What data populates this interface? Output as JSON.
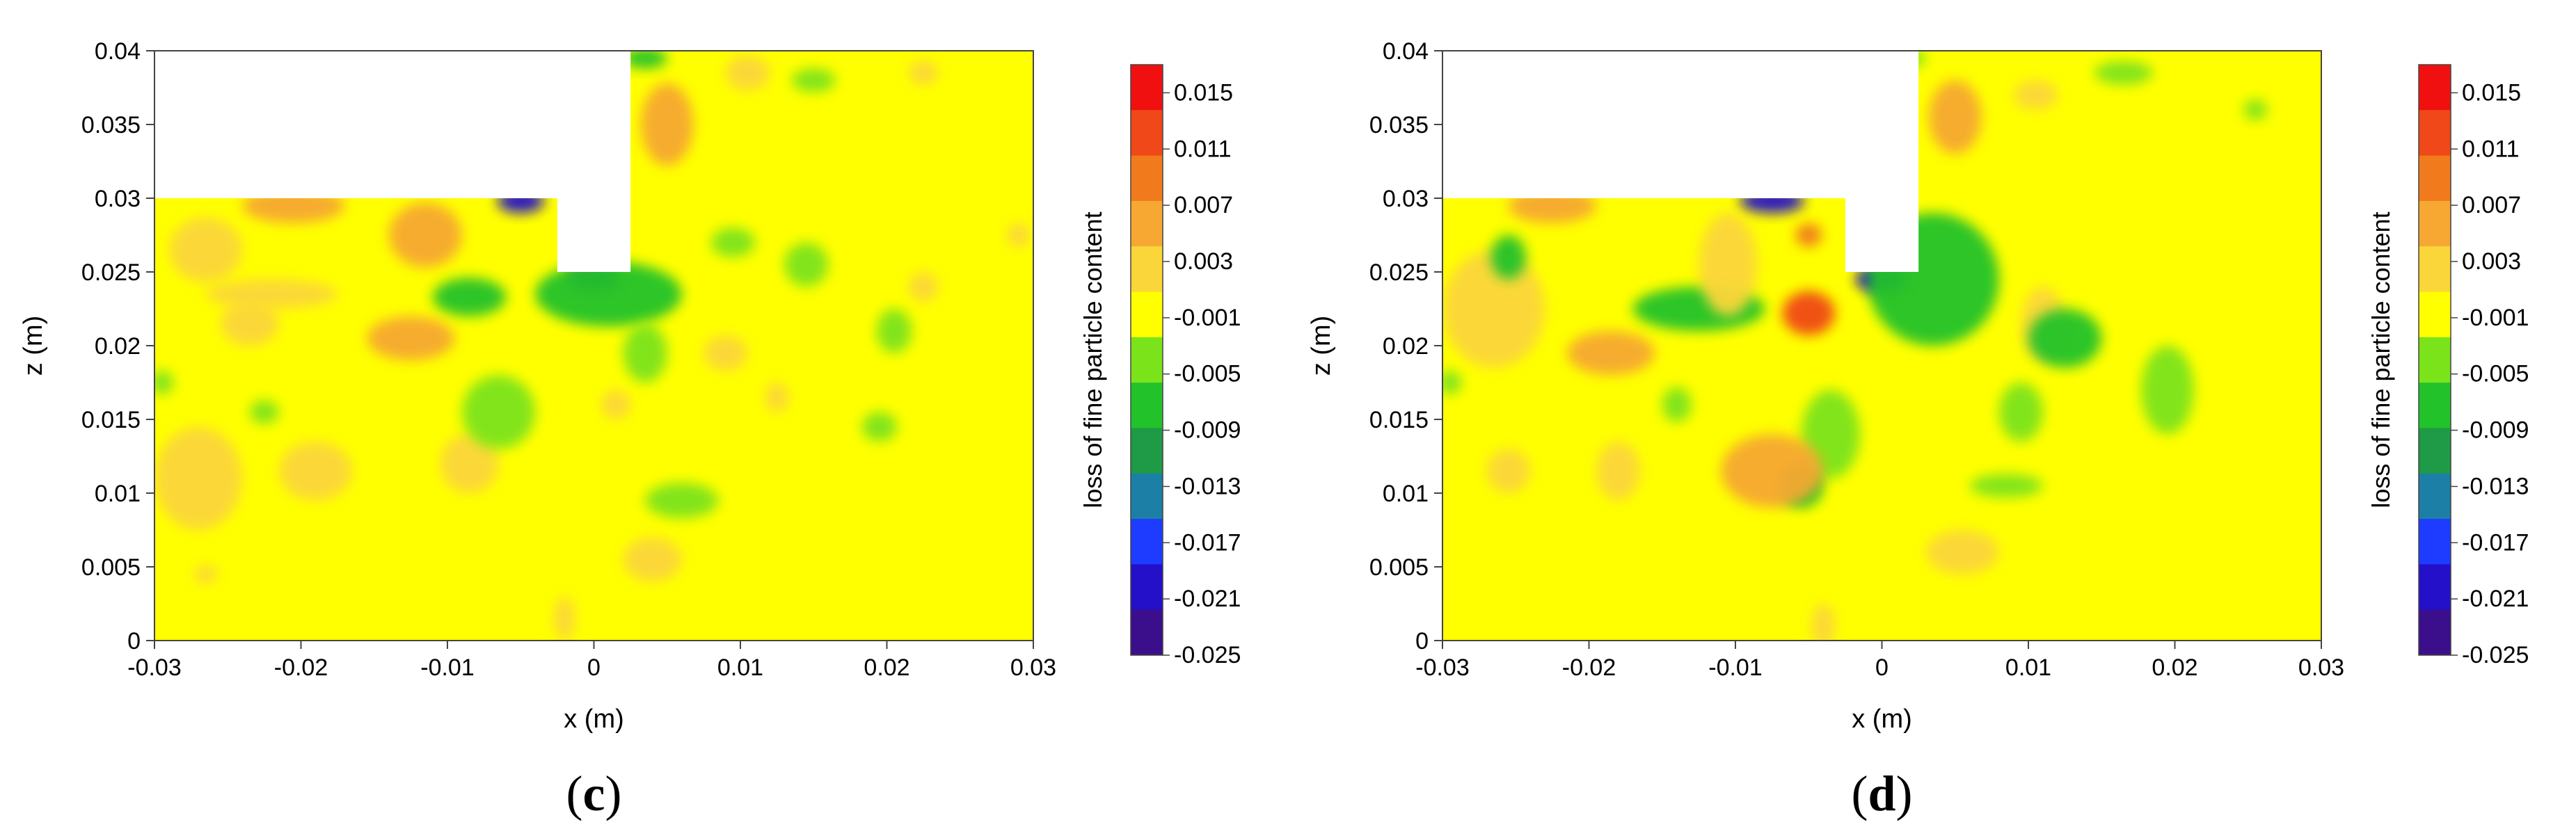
{
  "colors": {
    "background": "#ffff00",
    "masked": "#ffffff",
    "scale": [
      "#3b0f8c",
      "#2410c8",
      "#1e3cff",
      "#1b7fa6",
      "#1f9a47",
      "#22c22a",
      "#7be31a",
      "#ffff00",
      "#fbd63a",
      "#f6a832",
      "#f07a1c",
      "#f04818",
      "#f01010"
    ]
  },
  "chart_data": [
    {
      "type": "heatmap",
      "caption": "c",
      "xlabel": "x (m)",
      "ylabel": "z (m)",
      "xlim": [
        -0.03,
        0.03
      ],
      "ylim": [
        0,
        0.04
      ],
      "xticks": [
        "-0.03",
        "-0.02",
        "-0.01",
        "0",
        "0.01",
        "0.02",
        "0.03"
      ],
      "yticks": [
        "0",
        "0.005",
        "0.01",
        "0.015",
        "0.02",
        "0.025",
        "0.03",
        "0.035",
        "0.04"
      ],
      "colorbar": {
        "label": "loss of fine particle content",
        "ticks": [
          "0.015",
          "0.011",
          "0.007",
          "0.003",
          "-0.001",
          "-0.005",
          "-0.009",
          "-0.013",
          "-0.017",
          "-0.021",
          "-0.025"
        ],
        "range": [
          -0.025,
          0.017
        ]
      },
      "blobs": [
        {
          "x": -0.0205,
          "z": 0.0295,
          "rx": 0.0035,
          "rz": 0.0012,
          "v": 0.008
        },
        {
          "x": -0.0115,
          "z": 0.0275,
          "rx": 0.0025,
          "rz": 0.0022,
          "v": 0.007
        },
        {
          "x": -0.005,
          "z": 0.0298,
          "rx": 0.0016,
          "rz": 0.0008,
          "v": -0.021
        },
        {
          "x": 0.005,
          "z": 0.035,
          "rx": 0.0018,
          "rz": 0.0028,
          "v": 0.008
        },
        {
          "x": 0.0035,
          "z": 0.0395,
          "rx": 0.0015,
          "rz": 0.0007,
          "v": -0.006
        },
        {
          "x": 0.0,
          "z": 0.0245,
          "rx": 0.0018,
          "rz": 0.0007,
          "v": -0.02
        },
        {
          "x": 0.001,
          "z": 0.0235,
          "rx": 0.005,
          "rz": 0.0022,
          "v": -0.006
        },
        {
          "x": -0.0085,
          "z": 0.0233,
          "rx": 0.0025,
          "rz": 0.0013,
          "v": -0.006
        },
        {
          "x": -0.022,
          "z": 0.0235,
          "rx": 0.0045,
          "rz": 0.001,
          "v": 0.004
        },
        {
          "x": -0.0265,
          "z": 0.0265,
          "rx": 0.0025,
          "rz": 0.0022,
          "v": 0.003
        },
        {
          "x": -0.0235,
          "z": 0.0215,
          "rx": 0.002,
          "rz": 0.0015,
          "v": 0.004
        },
        {
          "x": -0.0125,
          "z": 0.0205,
          "rx": 0.003,
          "rz": 0.0015,
          "v": 0.005
        },
        {
          "x": -0.019,
          "z": 0.0115,
          "rx": 0.0025,
          "rz": 0.002,
          "v": 0.004
        },
        {
          "x": -0.0085,
          "z": 0.012,
          "rx": 0.002,
          "rz": 0.002,
          "v": 0.004
        },
        {
          "x": -0.027,
          "z": 0.011,
          "rx": 0.003,
          "rz": 0.0035,
          "v": 0.003
        },
        {
          "x": -0.0065,
          "z": 0.0155,
          "rx": 0.0025,
          "rz": 0.0025,
          "v": -0.004
        },
        {
          "x": -0.0225,
          "z": 0.0155,
          "rx": 0.001,
          "rz": 0.0008,
          "v": -0.004
        },
        {
          "x": -0.0295,
          "z": 0.0175,
          "rx": 0.0008,
          "rz": 0.0008,
          "v": -0.003
        },
        {
          "x": 0.006,
          "z": 0.0095,
          "rx": 0.0025,
          "rz": 0.0012,
          "v": -0.005
        },
        {
          "x": 0.0035,
          "z": 0.0195,
          "rx": 0.0015,
          "rz": 0.002,
          "v": -0.004
        },
        {
          "x": 0.0195,
          "z": 0.0145,
          "rx": 0.0012,
          "rz": 0.001,
          "v": -0.004
        },
        {
          "x": 0.0205,
          "z": 0.021,
          "rx": 0.0012,
          "rz": 0.0015,
          "v": -0.004
        },
        {
          "x": 0.0145,
          "z": 0.0255,
          "rx": 0.0015,
          "rz": 0.0015,
          "v": -0.004
        },
        {
          "x": 0.0095,
          "z": 0.027,
          "rx": 0.0015,
          "rz": 0.001,
          "v": -0.004
        },
        {
          "x": 0.015,
          "z": 0.038,
          "rx": 0.0015,
          "rz": 0.0008,
          "v": -0.003
        },
        {
          "x": 0.0225,
          "z": 0.0385,
          "rx": 0.001,
          "rz": 0.0008,
          "v": 0.003
        },
        {
          "x": 0.0105,
          "z": 0.0385,
          "rx": 0.0015,
          "rz": 0.0012,
          "v": 0.003
        },
        {
          "x": 0.029,
          "z": 0.0275,
          "rx": 0.0008,
          "rz": 0.0008,
          "v": 0.003
        },
        {
          "x": 0.004,
          "z": 0.0055,
          "rx": 0.002,
          "rz": 0.0015,
          "v": 0.004
        },
        {
          "x": -0.002,
          "z": 0.0015,
          "rx": 0.0007,
          "rz": 0.0015,
          "v": 0.004
        },
        {
          "x": 0.009,
          "z": 0.0195,
          "rx": 0.0015,
          "rz": 0.0012,
          "v": 0.003
        },
        {
          "x": 0.0015,
          "z": 0.016,
          "rx": 0.001,
          "rz": 0.001,
          "v": 0.003
        },
        {
          "x": 0.0125,
          "z": 0.0165,
          "rx": 0.0008,
          "rz": 0.001,
          "v": 0.003
        },
        {
          "x": 0.0225,
          "z": 0.024,
          "rx": 0.001,
          "rz": 0.001,
          "v": 0.003
        },
        {
          "x": -0.0265,
          "z": 0.0045,
          "rx": 0.0008,
          "rz": 0.0006,
          "v": 0.003
        }
      ]
    },
    {
      "type": "heatmap",
      "caption": "d",
      "xlabel": "x (m)",
      "ylabel": "z (m)",
      "xlim": [
        -0.03,
        0.03
      ],
      "ylim": [
        0,
        0.04
      ],
      "xticks": [
        "-0.03",
        "-0.02",
        "-0.01",
        "0",
        "0.01",
        "0.02",
        "0.03"
      ],
      "yticks": [
        "0",
        "0.005",
        "0.01",
        "0.015",
        "0.02",
        "0.025",
        "0.03",
        "0.035",
        "0.04"
      ],
      "colorbar": {
        "label": "loss of fine particle content",
        "ticks": [
          "0.015",
          "0.011",
          "0.007",
          "0.003",
          "-0.001",
          "-0.005",
          "-0.009",
          "-0.013",
          "-0.017",
          "-0.021",
          "-0.025"
        ],
        "range": [
          -0.025,
          0.017
        ]
      },
      "blobs": [
        {
          "x": -0.0225,
          "z": 0.0295,
          "rx": 0.003,
          "rz": 0.0012,
          "v": 0.008
        },
        {
          "x": -0.0075,
          "z": 0.0298,
          "rx": 0.0022,
          "rz": 0.0008,
          "v": -0.02
        },
        {
          "x": 0.0,
          "z": 0.0245,
          "rx": 0.0018,
          "rz": 0.0009,
          "v": -0.022
        },
        {
          "x": 0.0035,
          "z": 0.0245,
          "rx": 0.0045,
          "rz": 0.0045,
          "v": -0.007
        },
        {
          "x": -0.005,
          "z": 0.0222,
          "rx": 0.0018,
          "rz": 0.0015,
          "v": 0.012
        },
        {
          "x": -0.005,
          "z": 0.0275,
          "rx": 0.0009,
          "rz": 0.0008,
          "v": 0.011
        },
        {
          "x": -0.0125,
          "z": 0.0225,
          "rx": 0.0045,
          "rz": 0.0015,
          "v": -0.006
        },
        {
          "x": -0.0265,
          "z": 0.0225,
          "rx": 0.0035,
          "rz": 0.004,
          "v": 0.004
        },
        {
          "x": -0.0255,
          "z": 0.026,
          "rx": 0.0012,
          "rz": 0.0015,
          "v": -0.006
        },
        {
          "x": -0.0185,
          "z": 0.0195,
          "rx": 0.003,
          "rz": 0.0015,
          "v": 0.006
        },
        {
          "x": -0.0105,
          "z": 0.0255,
          "rx": 0.002,
          "rz": 0.0035,
          "v": 0.004
        },
        {
          "x": 0.005,
          "z": 0.0355,
          "rx": 0.0018,
          "rz": 0.0025,
          "v": 0.008
        },
        {
          "x": 0.002,
          "z": 0.0395,
          "rx": 0.001,
          "rz": 0.0006,
          "v": -0.005
        },
        {
          "x": 0.011,
          "z": 0.0215,
          "rx": 0.0015,
          "rz": 0.0025,
          "v": 0.004
        },
        {
          "x": 0.0125,
          "z": 0.0205,
          "rx": 0.0025,
          "rz": 0.002,
          "v": -0.006
        },
        {
          "x": 0.0195,
          "z": 0.017,
          "rx": 0.0018,
          "rz": 0.003,
          "v": -0.004
        },
        {
          "x": 0.0095,
          "z": 0.0155,
          "rx": 0.0015,
          "rz": 0.002,
          "v": -0.004
        },
        {
          "x": -0.0035,
          "z": 0.014,
          "rx": 0.002,
          "rz": 0.003,
          "v": -0.004
        },
        {
          "x": -0.0055,
          "z": 0.0105,
          "rx": 0.0015,
          "rz": 0.0015,
          "v": -0.006
        },
        {
          "x": 0.0085,
          "z": 0.0105,
          "rx": 0.0025,
          "rz": 0.0008,
          "v": -0.004
        },
        {
          "x": -0.0075,
          "z": 0.0115,
          "rx": 0.0035,
          "rz": 0.0025,
          "v": 0.005
        },
        {
          "x": -0.018,
          "z": 0.0115,
          "rx": 0.0015,
          "rz": 0.002,
          "v": 0.004
        },
        {
          "x": -0.0255,
          "z": 0.0115,
          "rx": 0.0015,
          "rz": 0.0015,
          "v": 0.003
        },
        {
          "x": 0.0055,
          "z": 0.006,
          "rx": 0.0025,
          "rz": 0.0015,
          "v": 0.004
        },
        {
          "x": -0.004,
          "z": 0.001,
          "rx": 0.0008,
          "rz": 0.0015,
          "v": 0.004
        },
        {
          "x": 0.0105,
          "z": 0.037,
          "rx": 0.0015,
          "rz": 0.001,
          "v": 0.003
        },
        {
          "x": 0.0165,
          "z": 0.0385,
          "rx": 0.002,
          "rz": 0.0008,
          "v": -0.004
        },
        {
          "x": 0.0255,
          "z": 0.036,
          "rx": 0.0008,
          "rz": 0.0007,
          "v": -0.003
        },
        {
          "x": -0.014,
          "z": 0.016,
          "rx": 0.001,
          "rz": 0.0012,
          "v": -0.004
        },
        {
          "x": -0.0295,
          "z": 0.0175,
          "rx": 0.0008,
          "rz": 0.0008,
          "v": -0.003
        }
      ]
    }
  ]
}
